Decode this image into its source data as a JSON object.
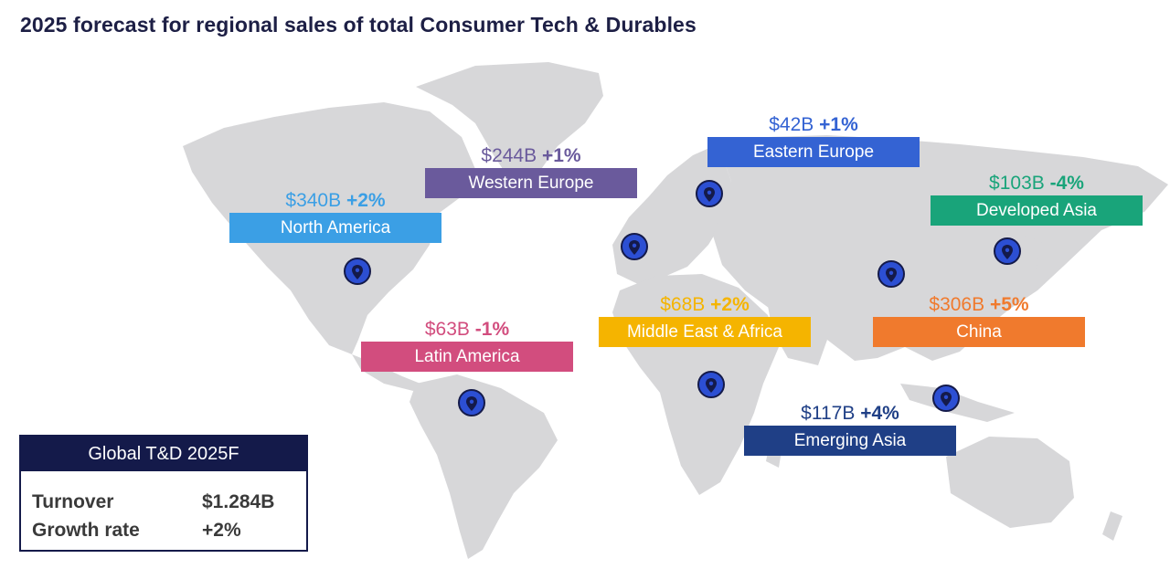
{
  "title": "2025 forecast for regional sales of total Consumer Tech & Durables",
  "map": {
    "background": "world-map",
    "land_color": "#d7d7d9",
    "pin_icon": "map-pin-icon",
    "pin_color": "#2c4fd3"
  },
  "regions": [
    {
      "id": "north-america",
      "name": "North America",
      "value": "$340B",
      "growth": "+2%",
      "color": "#3b9fe5",
      "text_color": "#3b9fe5"
    },
    {
      "id": "western-europe",
      "name": "Western Europe",
      "value": "$244B",
      "growth": "+1%",
      "color": "#6a5a9c",
      "text_color": "#6a5a9c"
    },
    {
      "id": "eastern-europe",
      "name": "Eastern Europe",
      "value": "$42B",
      "growth": "+1%",
      "color": "#3463d3",
      "text_color": "#3463d3"
    },
    {
      "id": "developed-asia",
      "name": "Developed Asia",
      "value": "$103B",
      "growth": "-4%",
      "color": "#19a47a",
      "text_color": "#19a47a"
    },
    {
      "id": "latin-america",
      "name": "Latin America",
      "value": "$63B",
      "growth": "-1%",
      "color": "#d24d7e",
      "text_color": "#d24d7e"
    },
    {
      "id": "middle-east-africa",
      "name": "Middle East & Africa",
      "value": "$68B",
      "growth": "+2%",
      "color": "#f5b400",
      "text_color": "#f5b400"
    },
    {
      "id": "china",
      "name": "China",
      "value": "$306B",
      "growth": "+5%",
      "color": "#f07a2d",
      "text_color": "#f07a2d"
    },
    {
      "id": "emerging-asia",
      "name": "Emerging Asia",
      "value": "$117B",
      "growth": "+4%",
      "color": "#1f3f86",
      "text_color": "#1f3f86"
    }
  ],
  "summary": {
    "title": "Global T&D 2025F",
    "rows": [
      {
        "label": "Turnover",
        "value": "$1.284B"
      },
      {
        "label": "Growth rate",
        "value": "+2%"
      }
    ]
  }
}
